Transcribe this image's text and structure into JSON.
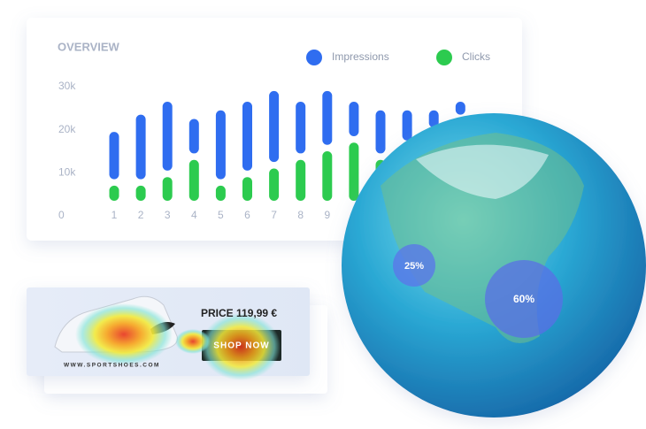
{
  "chart_data": {
    "type": "range_bar",
    "title": "OVERVIEW",
    "categories": [
      "1",
      "2",
      "3",
      "4",
      "5",
      "6",
      "7",
      "8",
      "9",
      null,
      null,
      null,
      null,
      null
    ],
    "series": [
      {
        "name": "Impressions",
        "color": "#2f6df0",
        "values": [
          [
            8500,
            19500
          ],
          [
            8500,
            23500
          ],
          [
            10500,
            26500
          ],
          [
            14500,
            22500
          ],
          [
            8500,
            24500
          ],
          [
            10500,
            26500
          ],
          [
            12500,
            29000
          ],
          [
            14500,
            26500
          ],
          [
            16500,
            29000
          ],
          [
            18500,
            26500
          ],
          [
            14500,
            24500
          ],
          [
            17500,
            24500
          ],
          [
            20500,
            24500
          ],
          [
            23500,
            26500
          ]
        ]
      },
      {
        "name": "Clicks",
        "color": "#2ccb4f",
        "values": [
          [
            3500,
            7000
          ],
          [
            3500,
            7000
          ],
          [
            3500,
            9000
          ],
          [
            3500,
            13000
          ],
          [
            3500,
            7000
          ],
          [
            3500,
            9000
          ],
          [
            3500,
            11000
          ],
          [
            3500,
            13000
          ],
          [
            3500,
            15000
          ],
          [
            3500,
            17000
          ],
          [
            3500,
            13000
          ],
          null,
          null,
          null
        ]
      }
    ],
    "ylim": [
      0,
      30000
    ],
    "yticks": [
      0,
      {
        "value": 10000,
        "label": "10k"
      },
      {
        "value": 20000,
        "label": "20k"
      },
      {
        "value": 30000,
        "label": "30k"
      }
    ],
    "grid": false
  },
  "banner": {
    "price": "PRICE 119,99 €",
    "button": "SHOP NOW",
    "url": "WWW.SPORTSHOES.COM"
  },
  "globe": {
    "markers": [
      {
        "label": "25%"
      },
      {
        "label": "60%"
      }
    ]
  }
}
